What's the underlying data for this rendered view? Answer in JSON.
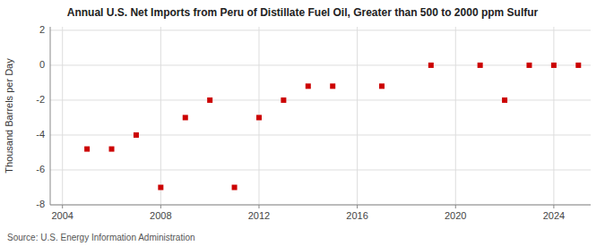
{
  "chart_data": {
    "type": "scatter",
    "title": "Annual U.S. Net Imports from Peru of Distillate Fuel Oil, Greater than 500 to 2000 ppm Sulfur",
    "ylabel": "Thousand Barrels per Day",
    "annotations": [
      "Source: U.S. Energy Information Administration"
    ],
    "x": [
      2005,
      2006,
      2007,
      2008,
      2009,
      2010,
      2011,
      2012,
      2013,
      2014,
      2015,
      2017,
      2019,
      2021,
      2022,
      2023,
      2024,
      2025
    ],
    "values": [
      -4.8,
      -4.8,
      -4.0,
      -7.0,
      -3.0,
      -2.0,
      -7.0,
      -3.0,
      -2.0,
      -1.2,
      -1.2,
      -1.2,
      0.0,
      0.0,
      -2.0,
      0.0,
      0.0,
      0.0
    ],
    "color": "#cc0000",
    "marker": "square",
    "xlim": [
      2003.5,
      2025.5
    ],
    "xticks": [
      2004,
      2008,
      2012,
      2016,
      2020,
      2024
    ],
    "ylim": [
      -8,
      2.2
    ],
    "yticks": [
      -8,
      -6,
      -4,
      -2,
      0,
      2
    ],
    "grid": true
  }
}
